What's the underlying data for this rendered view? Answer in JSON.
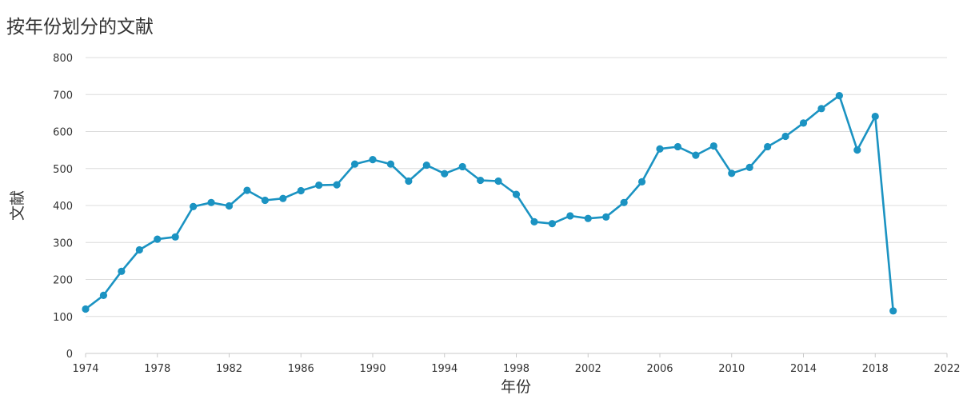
{
  "chart_data": {
    "type": "line",
    "title": "按年份划分的文献",
    "xlabel": "年份",
    "ylabel": "文献",
    "xlim": [
      1974,
      2022
    ],
    "ylim": [
      0,
      800
    ],
    "x_ticks": [
      "1974",
      "1978",
      "1982",
      "1986",
      "1990",
      "1994",
      "1998",
      "2002",
      "2006",
      "2010",
      "2014",
      "2018",
      "2022"
    ],
    "y_ticks": [
      "0",
      "100",
      "200",
      "300",
      "400",
      "500",
      "600",
      "700",
      "800"
    ],
    "grid": true,
    "color": "#1b93c2",
    "series": [
      {
        "x": [
          1974,
          1975,
          1976,
          1977,
          1978,
          1979,
          1980,
          1981,
          1982,
          1983,
          1984,
          1985,
          1986,
          1987,
          1988,
          1989,
          1990,
          1991,
          1992,
          1993,
          1994,
          1995,
          1996,
          1997,
          1998,
          1999,
          2000,
          2001,
          2002,
          2003,
          2004,
          2005,
          2006,
          2007,
          2008,
          2009,
          2010,
          2011,
          2012,
          2013,
          2014,
          2015,
          2016,
          2017,
          2018,
          2019
        ],
        "values": [
          120,
          157,
          222,
          280,
          309,
          315,
          397,
          408,
          399,
          441,
          414,
          419,
          440,
          455,
          456,
          512,
          524,
          512,
          466,
          509,
          486,
          505,
          468,
          466,
          430,
          356,
          351,
          372,
          365,
          369,
          408,
          464,
          553,
          559,
          536,
          561,
          487,
          503,
          559,
          587,
          623,
          662,
          697,
          550,
          641,
          115
        ]
      }
    ]
  }
}
